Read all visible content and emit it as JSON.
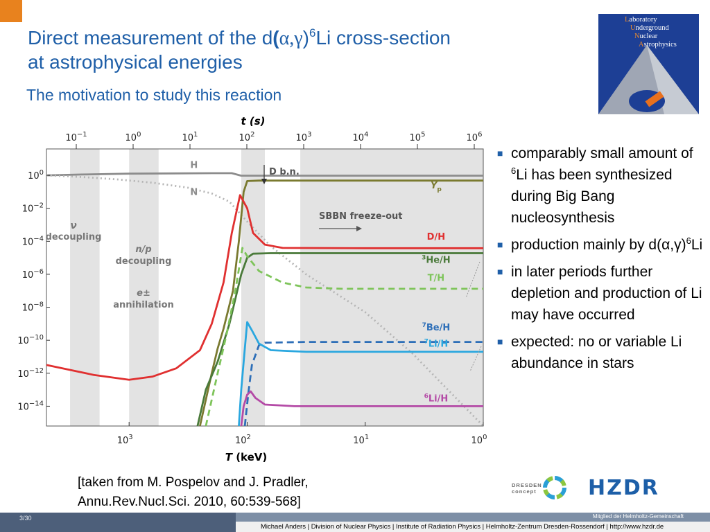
{
  "slide": {
    "title_line1_pre": "Direct measurement of the d",
    "title_paren_open": "(",
    "title_reaction": "α,γ",
    "title_paren_close": ")",
    "title_mass": "6",
    "title_line1_post": "Li cross-section",
    "title_line2": "at astrophysical energies",
    "subtitle": "The motivation to study this reaction",
    "page_number": "3/30",
    "colors": {
      "accent_orange": "#e8821e",
      "title_blue": "#1f5fa8",
      "footer_dark": "#4d5f7a",
      "footer_mid": "#7d8fa6"
    }
  },
  "lab_logo": {
    "lines": [
      {
        "initial": "L",
        "rest": "aboratory"
      },
      {
        "initial": "U",
        "rest": "nderground"
      },
      {
        "initial": "N",
        "rest": "uclear"
      },
      {
        "initial": "A",
        "rest": "strophysics"
      }
    ]
  },
  "bullets": [
    {
      "pre": "comparably small amount of ",
      "sup": "6",
      "post": "Li has been synthesized during Big Bang nucleosynthesis"
    },
    {
      "pre": "production mainly by d(α,γ)",
      "sup": "6",
      "post": "Li"
    },
    {
      "pre": "in later periods further depletion and production of Li may have occurred",
      "sup": "",
      "post": ""
    },
    {
      "pre": "expected: no or variable Li abundance in stars",
      "sup": "",
      "post": ""
    }
  ],
  "citation": {
    "line1": "[taken from M. Pospelov and J. Pradler,",
    "line2": "Annu.Rev.Nucl.Sci. 2010, 60:539-568]"
  },
  "logos": {
    "dresden_line1": "DRESDEN",
    "dresden_line2": "concept",
    "hzdr": "HZDR"
  },
  "footer": {
    "member": "Mitglied der Helmholtz-Gemeinschaft",
    "info": "Michael Anders | Division of Nuclear Physics | Institute of Radiation Physics | Helmholtz-Zentrum Dresden-Rossendorf | http://www.hzdr.de"
  },
  "chart_data": {
    "type": "line",
    "top_axis_label": "t (s)",
    "top_ticks": [
      {
        "base": "10",
        "exp": "−1",
        "log": -1
      },
      {
        "base": "10",
        "exp": "0",
        "log": 0
      },
      {
        "base": "10",
        "exp": "1",
        "log": 1
      },
      {
        "base": "10",
        "exp": "2",
        "log": 2
      },
      {
        "base": "10",
        "exp": "3",
        "log": 3
      },
      {
        "base": "10",
        "exp": "4",
        "log": 4
      },
      {
        "base": "10",
        "exp": "5",
        "log": 5
      },
      {
        "base": "10",
        "exp": "6",
        "log": 6
      }
    ],
    "xlabel_main": "T",
    "xlabel_unit": " (keV)",
    "xlim_log": [
      3.7,
      0
    ],
    "x_ticks": [
      {
        "base": "10",
        "exp": "3",
        "log": 3
      },
      {
        "base": "10",
        "exp": "2",
        "log": 2
      },
      {
        "base": "10",
        "exp": "1",
        "log": 1
      },
      {
        "base": "10",
        "exp": "0",
        "log": 0
      }
    ],
    "ylim_log": [
      -15.2,
      1.6
    ],
    "y_ticks": [
      {
        "base": "10",
        "exp": "0",
        "log": 0
      },
      {
        "base": "10",
        "exp": "−2",
        "log": -2
      },
      {
        "base": "10",
        "exp": "−4",
        "log": -4
      },
      {
        "base": "10",
        "exp": "−6",
        "log": -6
      },
      {
        "base": "10",
        "exp": "−8",
        "log": -8
      },
      {
        "base": "10",
        "exp": "−10",
        "log": -10
      },
      {
        "base": "10",
        "exp": "−12",
        "log": -12
      },
      {
        "base": "10",
        "exp": "−14",
        "log": -14
      }
    ],
    "shaded_bands_log": [
      [
        3.5,
        3.25
      ],
      [
        3.0,
        2.75
      ],
      [
        2.05,
        1.85
      ],
      [
        1.55,
        0.0
      ]
    ],
    "series": [
      {
        "name": "H",
        "color": "#8c8c8c",
        "dash": "",
        "points": [
          [
            3.7,
            0.0
          ],
          [
            3.4,
            0.05
          ],
          [
            3.0,
            0.1
          ],
          [
            2.3,
            0.13
          ],
          [
            2.13,
            0.13
          ],
          [
            2.05,
            -0.02
          ],
          [
            1.0,
            -0.02
          ],
          [
            0,
            -0.02
          ]
        ]
      },
      {
        "name": "N",
        "color": "#b5b5b5",
        "dash": "2,4",
        "points": [
          [
            3.7,
            0.0
          ],
          [
            3.4,
            -0.1
          ],
          [
            3.1,
            -0.25
          ],
          [
            2.8,
            -0.45
          ],
          [
            2.5,
            -0.75
          ],
          [
            2.3,
            -1.1
          ],
          [
            2.15,
            -1.6
          ],
          [
            2.0,
            -2.8
          ],
          [
            1.8,
            -4.3
          ],
          [
            1.5,
            -6.0
          ],
          [
            1.0,
            -8.3
          ],
          [
            0.6,
            -10.8
          ],
          [
            0.3,
            -13.0
          ],
          [
            0.0,
            -15.2
          ]
        ]
      },
      {
        "name": "Yp",
        "color": "#7a7a30",
        "dash": "",
        "points": [
          [
            2.4,
            -15.2
          ],
          [
            2.3,
            -12.0
          ],
          [
            2.25,
            -10.5
          ],
          [
            2.2,
            -9.3
          ],
          [
            2.12,
            -7.0
          ],
          [
            2.07,
            -4.0
          ],
          [
            2.03,
            -1.0
          ],
          [
            2.0,
            -0.35
          ],
          [
            1.9,
            -0.32
          ],
          [
            0,
            -0.32
          ]
        ]
      },
      {
        "name": "D/H",
        "color": "#e03030",
        "dash": "",
        "points": [
          [
            3.7,
            -11.5
          ],
          [
            3.3,
            -12.1
          ],
          [
            3.0,
            -12.4
          ],
          [
            2.8,
            -12.2
          ],
          [
            2.6,
            -11.7
          ],
          [
            2.4,
            -10.6
          ],
          [
            2.3,
            -9.0
          ],
          [
            2.2,
            -6.5
          ],
          [
            2.13,
            -3.5
          ],
          [
            2.06,
            -1.2
          ],
          [
            2.0,
            -2.0
          ],
          [
            1.95,
            -3.5
          ],
          [
            1.85,
            -4.2
          ],
          [
            1.7,
            -4.4
          ],
          [
            1.0,
            -4.42
          ],
          [
            0,
            -4.42
          ]
        ]
      },
      {
        "name": "3He/H",
        "color": "#4a7a3a",
        "dash": "",
        "points": [
          [
            2.42,
            -15.2
          ],
          [
            2.35,
            -13.0
          ],
          [
            2.25,
            -11.3
          ],
          [
            2.15,
            -9.0
          ],
          [
            2.1,
            -7.5
          ],
          [
            2.05,
            -6.0
          ],
          [
            2.0,
            -5.0
          ],
          [
            1.95,
            -4.75
          ],
          [
            1.8,
            -4.72
          ],
          [
            0,
            -4.72
          ]
        ]
      },
      {
        "name": "T/H",
        "color": "#7ec45a",
        "dash": "9,6",
        "points": [
          [
            2.35,
            -15.2
          ],
          [
            2.25,
            -12.0
          ],
          [
            2.17,
            -9.5
          ],
          [
            2.1,
            -7.0
          ],
          [
            2.04,
            -4.4
          ],
          [
            2.0,
            -4.9
          ],
          [
            1.9,
            -5.8
          ],
          [
            1.7,
            -6.5
          ],
          [
            1.5,
            -6.8
          ],
          [
            1.2,
            -6.88
          ],
          [
            0,
            -6.88
          ]
        ]
      },
      {
        "name": "7Be/H",
        "color": "#2e6fb8",
        "dash": "10,6",
        "points": [
          [
            2.02,
            -15.2
          ],
          [
            1.99,
            -13.2
          ],
          [
            1.96,
            -11.5
          ],
          [
            1.9,
            -10.3
          ],
          [
            1.85,
            -10.15
          ],
          [
            1.5,
            -10.1
          ],
          [
            0,
            -10.1
          ]
        ]
      },
      {
        "name": "7Li/H",
        "color": "#2aa7df",
        "dash": "",
        "points": [
          [
            2.07,
            -15.2
          ],
          [
            2.05,
            -13.0
          ],
          [
            2.02,
            -10.5
          ],
          [
            2.0,
            -8.9
          ],
          [
            1.96,
            -9.4
          ],
          [
            1.9,
            -10.2
          ],
          [
            1.8,
            -10.6
          ],
          [
            1.5,
            -10.7
          ],
          [
            0,
            -10.7
          ]
        ]
      },
      {
        "name": "6Li/H",
        "color": "#b44aa6",
        "dash": "",
        "points": [
          [
            2.05,
            -15.2
          ],
          [
            2.03,
            -14.0
          ],
          [
            2.0,
            -13.3
          ],
          [
            1.97,
            -13.1
          ],
          [
            1.93,
            -13.5
          ],
          [
            1.85,
            -13.9
          ],
          [
            1.6,
            -14.0
          ],
          [
            0,
            -14.0
          ]
        ]
      }
    ],
    "curve_labels": [
      {
        "text": "H",
        "color": "#8c8c8c",
        "x_log": 2.45,
        "y_log": 0.45
      },
      {
        "text": "N",
        "color": "#8c8c8c",
        "x_log": 2.45,
        "y_log": -1.2
      },
      {
        "text": "Y",
        "sub": "p",
        "color": "#7a7a30",
        "x_log": 0.4,
        "y_log": -0.8
      },
      {
        "text": "D/H",
        "color": "#e03030",
        "x_log": 0.4,
        "y_log": -3.9
      },
      {
        "text": "3",
        "after": "He/H",
        "color": "#4a7a3a",
        "x_log": 0.4,
        "y_log": -5.3
      },
      {
        "text": "T/H",
        "color": "#7ec45a",
        "x_log": 0.4,
        "y_log": -6.4
      },
      {
        "text": "7",
        "after": "Be/H",
        "color": "#2e6fb8",
        "x_log": 0.4,
        "y_log": -9.4
      },
      {
        "text": "7",
        "after": "Li/H",
        "color": "#2aa7df",
        "x_log": 0.4,
        "y_log": -10.4
      },
      {
        "text": "6",
        "after": "Li/H",
        "color": "#b44aa6",
        "x_log": 0.4,
        "y_log": -13.7
      }
    ],
    "annotations": {
      "dbn": "D b.n.",
      "freeze_out": "SBBN freeze-out",
      "nu_symbol": "ν",
      "nu_text": "decoupling",
      "np_symbol": "n/p",
      "np_text": "decoupling",
      "e_symbol": "e±",
      "e_text": "annihilation"
    }
  }
}
